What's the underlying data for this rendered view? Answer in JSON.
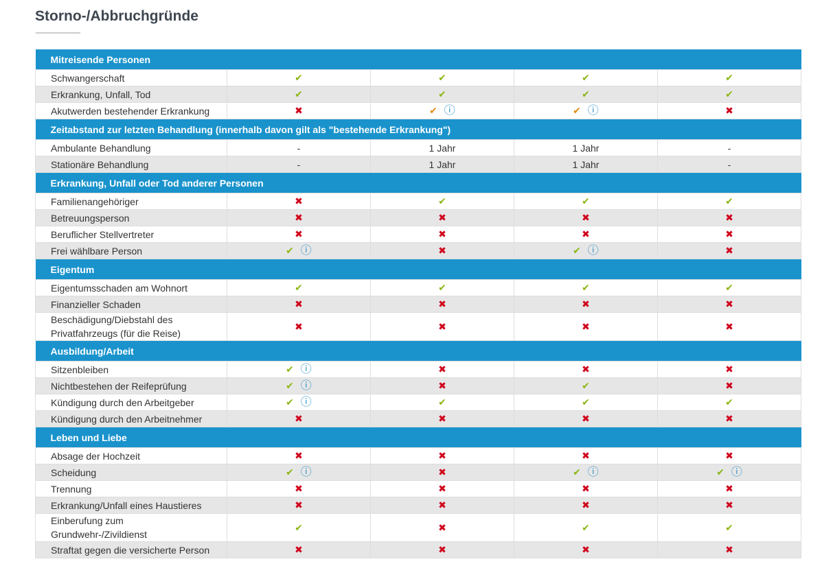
{
  "header": {
    "title": "Storno-/Abbruchgründe"
  },
  "colors": {
    "check": "#8cb614",
    "partial": "#e08a12",
    "cross": "#d0021b",
    "info": "#2a8fc8",
    "header": "#1a93cc",
    "stripe": "#e6e6e6"
  },
  "table": {
    "sections": [
      {
        "title": "Mitreisende Personen",
        "rows": [
          {
            "label": "Schwangerschaft",
            "cells": [
              "✔",
              "✔",
              "✔",
              "✔"
            ]
          },
          {
            "label": "Erkrankung, Unfall, Tod",
            "cells": [
              "✔",
              "✔",
              "✔",
              "✔"
            ]
          },
          {
            "label": "Akutwerden bestehender Erkrankung",
            "cells": [
              "✖",
              "✔ ⓘ",
              "✔ ⓘ",
              "✖"
            ],
            "partial": [
              1,
              2
            ]
          }
        ]
      },
      {
        "title": "Zeitabstand zur letzten Behandlung (innerhalb davon gilt als \"bestehende Erkrankung\")",
        "rows": [
          {
            "label": "Ambulante Behandlung",
            "cells": [
              "-",
              "1 Jahr",
              "1 Jahr",
              "-"
            ]
          },
          {
            "label": "Stationäre Behandlung",
            "cells": [
              "-",
              "1 Jahr",
              "1 Jahr",
              "-"
            ]
          }
        ]
      },
      {
        "title": "Erkrankung, Unfall oder Tod anderer Personen",
        "rows": [
          {
            "label": "Familienangehöriger",
            "cells": [
              "✖",
              "✔",
              "✔",
              "✔"
            ]
          },
          {
            "label": "Betreuungsperson",
            "cells": [
              "✖",
              "✖",
              "✖",
              "✖"
            ]
          },
          {
            "label": "Beruflicher Stellvertreter",
            "cells": [
              "✖",
              "✖",
              "✖",
              "✖"
            ]
          },
          {
            "label": "Frei wählbare Person",
            "cells": [
              "✔ ⓘ",
              "✖",
              "✔ ⓘ",
              "✖"
            ]
          }
        ]
      },
      {
        "title": "Eigentum",
        "rows": [
          {
            "label": "Eigentumsschaden am Wohnort",
            "cells": [
              "✔",
              "✔",
              "✔",
              "✔"
            ]
          },
          {
            "label": "Finanzieller Schaden",
            "cells": [
              "✖",
              "✖",
              "✖",
              "✖"
            ]
          },
          {
            "label": "Beschädigung/Diebstahl des Privatfahrzeugs (für die Reise)",
            "cells": [
              "✖",
              "✖",
              "✖",
              "✖"
            ]
          }
        ]
      },
      {
        "title": "Ausbildung/Arbeit",
        "rows": [
          {
            "label": "Sitzenbleiben",
            "cells": [
              "✔ ⓘ",
              "✖",
              "✖",
              "✖"
            ]
          },
          {
            "label": "Nichtbestehen der Reifeprüfung",
            "cells": [
              "✔ ⓘ",
              "✖",
              "✔",
              "✖"
            ]
          },
          {
            "label": "Kündigung durch den Arbeitgeber",
            "cells": [
              "✔ ⓘ",
              "✔",
              "✔",
              "✔"
            ]
          },
          {
            "label": "Kündigung durch den Arbeitnehmer",
            "cells": [
              "✖",
              "✖",
              "✖",
              "✖"
            ]
          }
        ]
      },
      {
        "title": "Leben und Liebe",
        "rows": [
          {
            "label": "Absage der Hochzeit",
            "cells": [
              "✖",
              "✖",
              "✖",
              "✖"
            ]
          },
          {
            "label": "Scheidung",
            "cells": [
              "✔ ⓘ",
              "✖",
              "✔ ⓘ",
              "✔ ⓘ"
            ]
          },
          {
            "label": "Trennung",
            "cells": [
              "✖",
              "✖",
              "✖",
              "✖"
            ]
          },
          {
            "label": "Erkrankung/Unfall eines Haustieres",
            "cells": [
              "✖",
              "✖",
              "✖",
              "✖"
            ]
          },
          {
            "label": "Einberufung zum Grundwehr-/Zivildienst",
            "cells": [
              "✔",
              "✖",
              "✔",
              "✔"
            ]
          },
          {
            "label": "Straftat gegen die versicherte Person",
            "cells": [
              "✖",
              "✖",
              "✖",
              "✖"
            ]
          }
        ]
      }
    ]
  }
}
